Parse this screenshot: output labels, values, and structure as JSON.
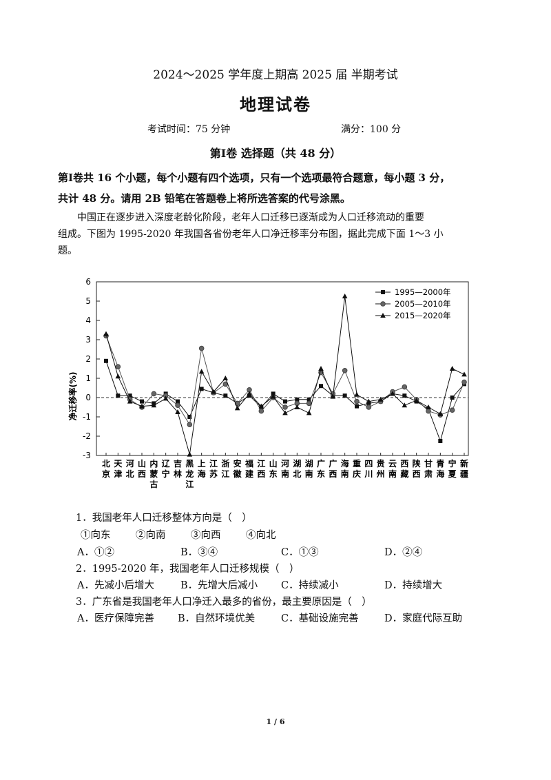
{
  "header": {
    "exam_line": "2024～2025 学年度上期高 2025 届 半期考试",
    "subject": "地理试卷",
    "time": "考试时间：75 分钟",
    "score": "满分：100 分"
  },
  "section": {
    "title": "第Ⅰ卷 选择题（共 48 分）",
    "instruction_line1": "第Ⅰ卷共 16 个小题，每个小题有四个选项，只有一个选项最符合题意，每小题 3 分，",
    "instruction_line2": "共计 48 分。请用 2B 铅笔在答题卷上将所选答案的代号涂黑。"
  },
  "intro": {
    "line1": "中国正在逐步进入深度老龄化阶段，老年人口迁移已逐渐成为人口迁移流动的重要",
    "line2": "组成。下图为 1995-2020 年我国各省份老年人口净迁移率分布图，据此完成下面 1～3 小",
    "line3": "题。"
  },
  "chart_data": {
    "type": "line",
    "ylabel": "净迁移率(%)",
    "ylim": [
      -3,
      6
    ],
    "yticks": [
      "6",
      "5",
      "4",
      "3",
      "2",
      "1",
      "0",
      "-1",
      "-2",
      "-3"
    ],
    "reference_line": 0,
    "legend_position": "top-right",
    "categories": [
      "北京",
      "天津",
      "河北",
      "山西",
      "内蒙古",
      "辽宁",
      "吉林",
      "黑龙江",
      "上海",
      "江苏",
      "浙江",
      "安徽",
      "福建",
      "江西",
      "山东",
      "河南",
      "湖北",
      "湖南",
      "广东",
      "广西",
      "海南",
      "重庆",
      "四川",
      "贵州",
      "云南",
      "西藏",
      "陕西",
      "甘肃",
      "青海",
      "宁夏",
      "新疆"
    ],
    "series": [
      {
        "name": "1995—2000年",
        "marker": "square",
        "values": [
          1.9,
          0.1,
          0.1,
          -0.2,
          -0.3,
          0.2,
          -0.2,
          -1.0,
          0.45,
          0.25,
          0.1,
          -0.3,
          0.1,
          -0.5,
          0.2,
          -0.2,
          -0.1,
          -0.1,
          0.6,
          0.1,
          0.1,
          -0.45,
          -0.3,
          -0.2,
          0.2,
          0.1,
          -0.2,
          -0.6,
          -2.25,
          0.0,
          0.7
        ]
      },
      {
        "name": "2005—2010年",
        "marker": "circle",
        "values": [
          3.2,
          1.6,
          -0.1,
          -0.5,
          0.2,
          0.1,
          -0.4,
          -1.4,
          2.55,
          0.25,
          0.7,
          -0.3,
          0.4,
          -0.7,
          0.0,
          -0.5,
          -0.3,
          -0.3,
          1.3,
          0.2,
          1.4,
          -0.2,
          -0.5,
          -0.2,
          0.3,
          0.55,
          -0.1,
          -0.7,
          -0.9,
          -0.65,
          0.8
        ]
      },
      {
        "name": "2015—2020年",
        "marker": "triangle",
        "values": [
          3.3,
          1.1,
          -0.2,
          -0.45,
          -0.4,
          -0.05,
          -0.75,
          -2.95,
          1.35,
          0.3,
          1.0,
          -0.55,
          0.2,
          -0.45,
          0.05,
          -0.8,
          -0.5,
          -0.8,
          1.5,
          0.05,
          5.25,
          0.15,
          -0.2,
          -0.1,
          0.2,
          -0.4,
          -0.15,
          -0.5,
          -0.85,
          1.5,
          1.2
        ]
      }
    ]
  },
  "questions": [
    {
      "stem": "1．我国老年人口迁移整体方向是（　）",
      "sub": [
        "①向东",
        "②向南",
        "③向西",
        "④向北"
      ],
      "options": [
        "A．①②",
        "B．③④",
        "C．①③",
        "D．②④"
      ]
    },
    {
      "stem": "2．1995-2020 年，我国老年人口迁移规模（　）",
      "options": [
        "A．先减小后增大",
        "B．先增大后减小",
        "C．持续减小",
        "D．持续增大"
      ]
    },
    {
      "stem": "3．广东省是我国老年人口净迁入最多的省份，最主要原因是（　）",
      "options": [
        "A．医疗保障完善",
        "B．自然环境优美",
        "C．基础设施完善",
        "D．家庭代际互助"
      ]
    }
  ],
  "footer": {
    "page": "1 / 6"
  }
}
